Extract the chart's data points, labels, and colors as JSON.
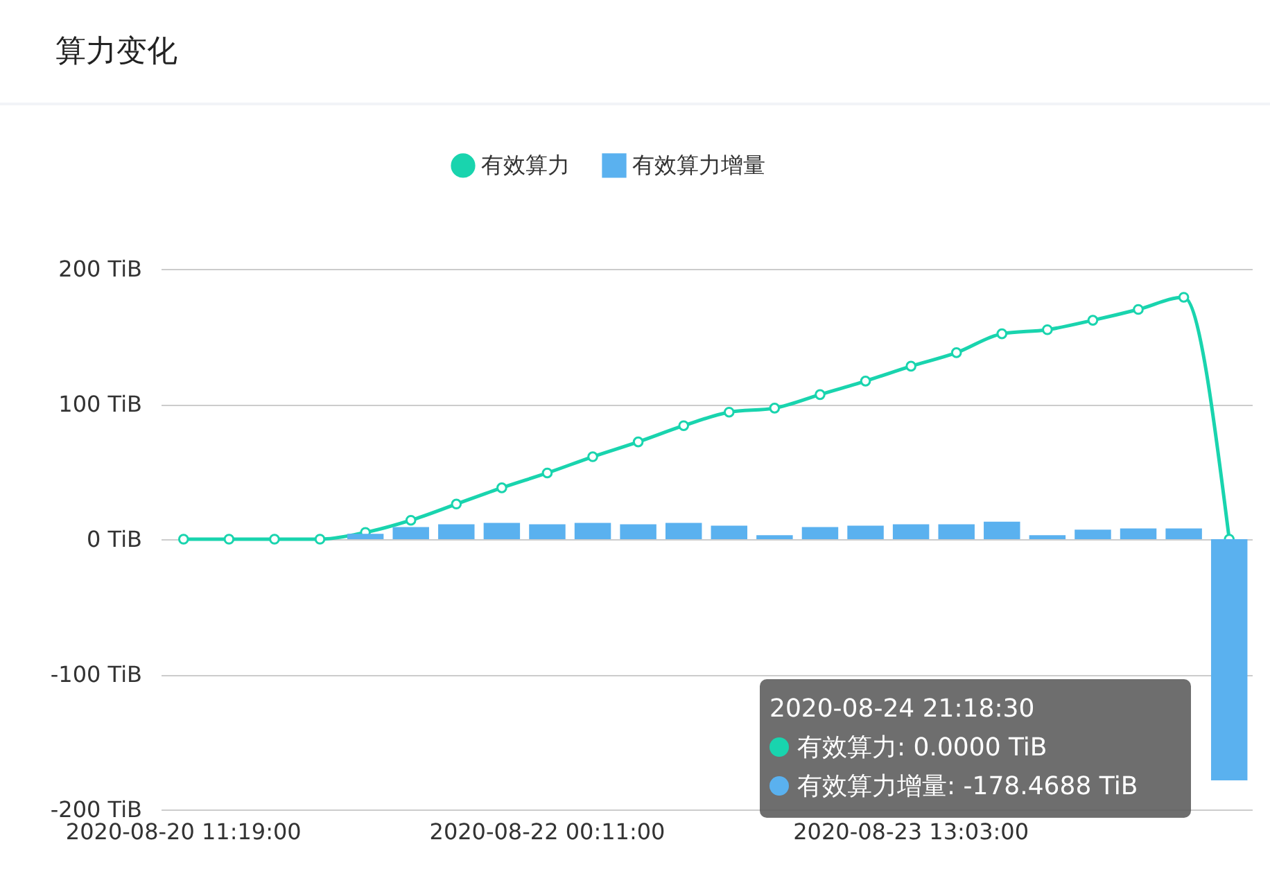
{
  "chart_data": {
    "type": "bar",
    "title": "算力变化",
    "categories": [
      "2020-08-20 11:19:00",
      null,
      null,
      null,
      null,
      null,
      null,
      null,
      "2020-08-22 00:11:00",
      null,
      null,
      null,
      null,
      null,
      null,
      null,
      "2020-08-23 13:03:00",
      null,
      null,
      null,
      null,
      null,
      null,
      null
    ],
    "series": [
      {
        "name": "有效算力",
        "type": "line",
        "color": "#19d4ae",
        "values": [
          0,
          0,
          0,
          0,
          5,
          14,
          26,
          38,
          49,
          61,
          72,
          84,
          94,
          97,
          107,
          117,
          128,
          138,
          152,
          155,
          162,
          170,
          179,
          0
        ]
      },
      {
        "name": "有效算力增量",
        "color": "#5ab1ef",
        "values": [
          0,
          0,
          0,
          0,
          4,
          9,
          11,
          12,
          11,
          12,
          11,
          12,
          10,
          3,
          9,
          10,
          11,
          11,
          13,
          3,
          7,
          8,
          8,
          -178.4688
        ]
      }
    ],
    "ylim": [
      -200,
      200
    ],
    "yticks": [
      {
        "value": -200,
        "label": "-200 TiB"
      },
      {
        "value": -100,
        "label": "-100 TiB"
      },
      {
        "value": 0,
        "label": "0 TiB"
      },
      {
        "value": 100,
        "label": "100 TiB"
      },
      {
        "value": 200,
        "label": "200 TiB"
      }
    ],
    "grid": "y",
    "legend": "top",
    "marker": "circle",
    "annotations": [
      "2020-08-24 21:18:30",
      "有效算力: 0.0000 TiB",
      "有效算力增量: -178.4688 TiB"
    ]
  }
}
